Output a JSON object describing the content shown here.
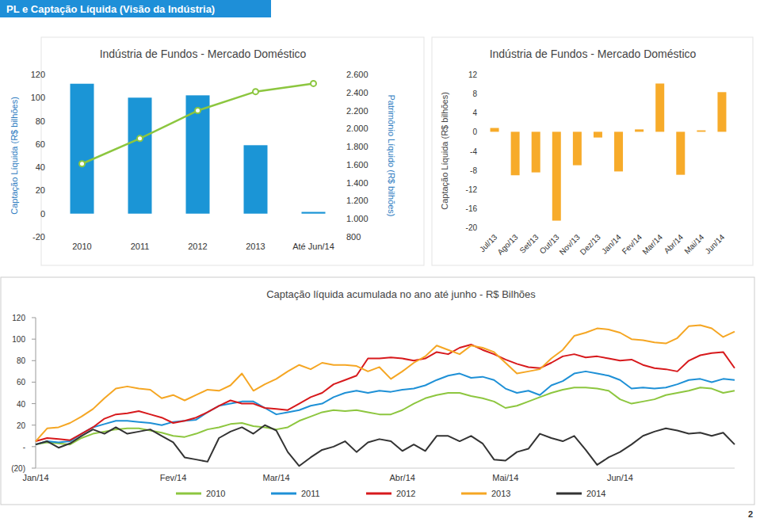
{
  "header": {
    "title": "PL e Captação Líquida (Visão da Indústria)"
  },
  "chart_data": [
    {
      "type": "bar",
      "title": "Indústria de Fundos - Mercado Doméstico",
      "y_label": "Captação Líquida (R$ bilhões)",
      "y2_label": "Patrimônio Líquido (R$ bilhões)",
      "categories": [
        "2010",
        "2011",
        "2012",
        "2013",
        "Até Jun/14"
      ],
      "series": [
        {
          "type": "bar",
          "color": "#1b95d6",
          "values": [
            112,
            100,
            102,
            59,
            1.5
          ]
        },
        {
          "type": "line",
          "axis": "y2",
          "color": "#8cc63f",
          "marker": "circle",
          "values": [
            1610,
            1890,
            2200,
            2410,
            2500
          ]
        }
      ],
      "ylim": [
        -20,
        120
      ],
      "yticks": [
        -20,
        0,
        20,
        40,
        60,
        80,
        100,
        120
      ],
      "y2lim": [
        800,
        2600
      ],
      "y2ticks": [
        800,
        {
          "value": 1000,
          "label": "1.000"
        },
        {
          "value": 1200,
          "label": "1.200"
        },
        {
          "value": 1400,
          "label": "1.400"
        },
        {
          "value": 1600,
          "label": "1.600"
        },
        {
          "value": 1800,
          "label": "1.800"
        },
        {
          "value": 2000,
          "label": "2.000"
        },
        {
          "value": 2200,
          "label": "2.200"
        },
        {
          "value": 2400,
          "label": "2.400"
        },
        {
          "value": 2600,
          "label": "2.600"
        }
      ],
      "grid": false
    },
    {
      "type": "bar",
      "title": "Indústria de Fundos - Mercado Doméstico",
      "y_label": "Captação Líquida (R$ bilhões)",
      "categories": [
        "Jul/13",
        "Ago/13",
        "Set/13",
        "Out/13",
        "Nov/13",
        "Dez/13",
        "Jan/14",
        "Fev/14",
        "Mar/14",
        "Abr/14",
        "Mai/14",
        "Jun/14"
      ],
      "values": [
        0.8,
        -9.1,
        -8.5,
        -18.6,
        -7.0,
        -1.2,
        -8.3,
        0.5,
        10.1,
        -9.0,
        0.3,
        8.3
      ],
      "color": "#f7ab2a",
      "ylim": [
        -20,
        12
      ],
      "yticks": [
        -20,
        -16,
        -12,
        -8,
        -4,
        0,
        4,
        8,
        12
      ],
      "grid": false
    },
    {
      "type": "line",
      "title": "Captação líquida acumulada no ano até  junho - R$ Bilhões",
      "categories": [
        "Jan/14",
        null,
        null,
        null,
        null,
        null,
        null,
        null,
        null,
        null,
        null,
        null,
        "Fev/14",
        null,
        null,
        null,
        null,
        null,
        null,
        null,
        null,
        "Mar/14",
        null,
        null,
        null,
        null,
        null,
        null,
        null,
        null,
        null,
        null,
        "Abr/14",
        null,
        null,
        null,
        null,
        null,
        null,
        null,
        null,
        "Mai/14",
        null,
        null,
        null,
        null,
        null,
        null,
        null,
        null,
        null,
        "Jun/14",
        null,
        null,
        null,
        null,
        null,
        null,
        null,
        null,
        null,
        null
      ],
      "series": [
        {
          "name": "2010",
          "color": "#8dc63f",
          "values": [
            2,
            4,
            3,
            2,
            8,
            12,
            14,
            16,
            17,
            17,
            15,
            13,
            10,
            9,
            12,
            16,
            18,
            21,
            22,
            19,
            18,
            16,
            18,
            24,
            28,
            32,
            34,
            33,
            34,
            32,
            30,
            30,
            34,
            40,
            45,
            48,
            50,
            50,
            47,
            45,
            42,
            36,
            38,
            42,
            46,
            50,
            53,
            55,
            55,
            54,
            52,
            44,
            40,
            42,
            44,
            48,
            50,
            52,
            55,
            54,
            50,
            52
          ]
        },
        {
          "name": "2011",
          "color": "#1e90d6",
          "values": [
            2,
            5,
            4,
            5,
            12,
            18,
            21,
            24,
            24,
            23,
            22,
            20,
            23,
            24,
            25,
            32,
            38,
            40,
            42,
            42,
            36,
            30,
            32,
            34,
            38,
            40,
            46,
            50,
            52,
            50,
            52,
            51,
            53,
            54,
            57,
            62,
            66,
            68,
            64,
            65,
            62,
            54,
            50,
            52,
            48,
            57,
            61,
            68,
            70,
            68,
            66,
            62,
            54,
            55,
            54,
            55,
            58,
            62,
            63,
            60,
            63,
            62
          ]
        },
        {
          "name": "2012",
          "color": "#d7191c",
          "values": [
            5,
            8,
            7,
            6,
            12,
            18,
            26,
            30,
            31,
            33,
            30,
            27,
            22,
            24,
            27,
            32,
            38,
            43,
            40,
            40,
            36,
            35,
            34,
            40,
            46,
            50,
            58,
            62,
            66,
            82,
            82,
            83,
            82,
            80,
            82,
            88,
            86,
            92,
            95,
            90,
            86,
            81,
            77,
            74,
            73,
            78,
            84,
            86,
            83,
            84,
            82,
            80,
            81,
            76,
            73,
            72,
            70,
            80,
            85,
            87,
            88,
            73
          ]
        },
        {
          "name": "2013",
          "color": "#f5a623",
          "values": [
            5,
            17,
            18,
            22,
            28,
            35,
            45,
            54,
            56,
            54,
            53,
            45,
            48,
            43,
            48,
            53,
            52,
            57,
            68,
            52,
            58,
            63,
            70,
            76,
            72,
            78,
            76,
            76,
            75,
            70,
            74,
            63,
            70,
            78,
            84,
            94,
            90,
            86,
            94,
            92,
            88,
            78,
            68,
            70,
            72,
            82,
            90,
            103,
            106,
            110,
            109,
            106,
            100,
            99,
            97,
            96,
            101,
            112,
            113,
            110,
            102,
            107
          ]
        },
        {
          "name": "2014",
          "color": "#333333",
          "values": [
            2,
            5,
            -1,
            3,
            10,
            16,
            12,
            18,
            12,
            14,
            16,
            10,
            4,
            -10,
            -12,
            -14,
            8,
            14,
            18,
            12,
            20,
            15,
            -5,
            -18,
            -10,
            -3,
            0,
            5,
            -5,
            4,
            7,
            5,
            -4,
            2,
            -4,
            10,
            10,
            5,
            10,
            3,
            -12,
            -13,
            -5,
            -2,
            12,
            8,
            5,
            10,
            -3,
            -17,
            -10,
            -5,
            2,
            10,
            14,
            17,
            15,
            12,
            13,
            10,
            13,
            2
          ]
        }
      ],
      "ylim": [
        -20,
        120
      ],
      "yticks": [
        {
          "value": -20,
          "label": "(20)"
        },
        {
          "value": 0,
          "label": "-"
        },
        20,
        40,
        60,
        80,
        100,
        120
      ],
      "legend": "bottom",
      "grid": false
    }
  ],
  "footer": {
    "page": 2
  }
}
